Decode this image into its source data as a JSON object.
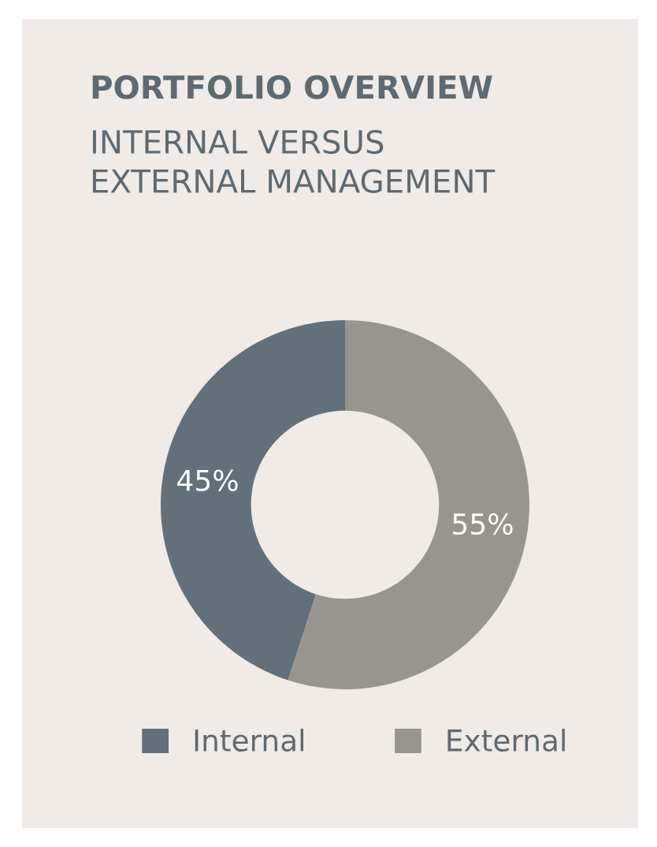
{
  "chart_data": {
    "type": "donut",
    "title": "PORTFOLIO OVERVIEW",
    "subtitle": "INTERNAL VERSUS\nEXTERNAL MANAGEMENT",
    "categories": [
      "Internal",
      "External"
    ],
    "values": [
      45,
      55
    ],
    "colors": [
      "#637079",
      "#98958f"
    ],
    "value_labels": [
      "45%",
      "55%"
    ],
    "legend": "bottom"
  }
}
